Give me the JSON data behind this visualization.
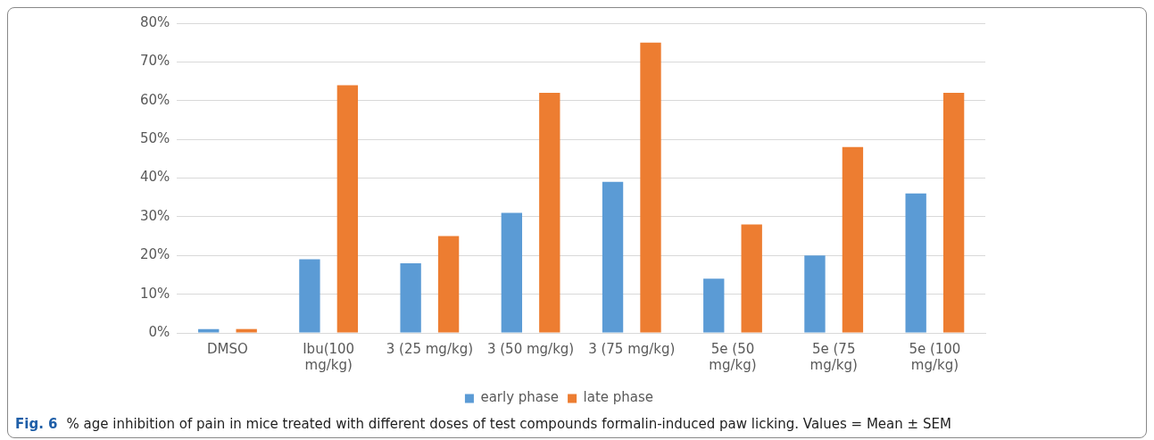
{
  "chart_data": {
    "type": "bar",
    "categories": [
      "DMSO",
      "Ibu(100 mg/kg)",
      "3 (25 mg/kg)",
      "3 (50 mg/kg)",
      "3 (75 mg/kg)",
      "5e (50 mg/kg)",
      "5e (75 mg/kg)",
      "5e (100 mg/kg)"
    ],
    "series": [
      {
        "name": "early phase",
        "color": "#5b9bd5",
        "values": [
          1,
          19,
          18,
          31,
          39,
          14,
          20,
          36
        ]
      },
      {
        "name": "late phase",
        "color": "#ed7d31",
        "values": [
          1,
          64,
          25,
          62,
          75,
          28,
          48,
          62
        ]
      }
    ],
    "ylim": [
      0,
      80
    ],
    "yticks": [
      {
        "value": 0,
        "label": "0%"
      },
      {
        "value": 10,
        "label": "10%"
      },
      {
        "value": 20,
        "label": "20%"
      },
      {
        "value": 30,
        "label": "30%"
      },
      {
        "value": 40,
        "label": "40%"
      },
      {
        "value": 50,
        "label": "50%"
      },
      {
        "value": 60,
        "label": "60%"
      },
      {
        "value": 70,
        "label": "70%"
      },
      {
        "value": 80,
        "label": "80%"
      }
    ],
    "grid": "y",
    "legend": "bottom",
    "annotations": [
      "Fig. 6",
      "% age inhibition of pain in mice treated with different doses of test compounds formalin-induced paw licking. Values = Mean ± SEM"
    ]
  }
}
